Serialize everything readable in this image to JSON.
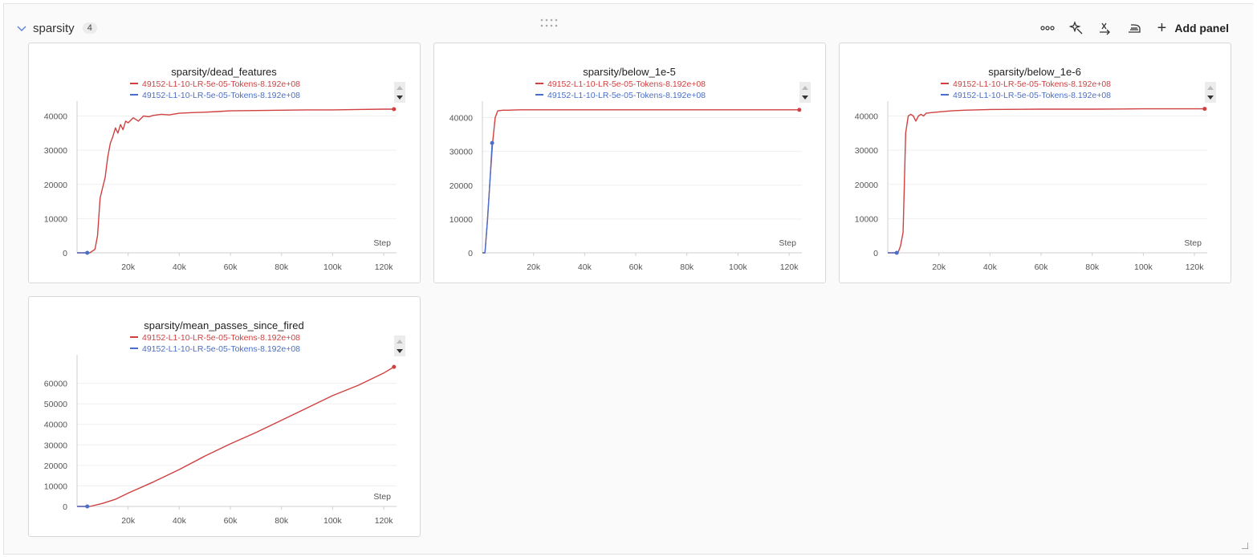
{
  "section": {
    "title": "sparsity",
    "count": "4",
    "toolbar": {
      "more_icon": "more-horizontal-icon",
      "pin_icon": "magic-wand-icon",
      "expression_icon": "expression-x-icon",
      "smoothing_icon": "iron-icon",
      "add_panel_label": "Add panel"
    }
  },
  "colors": {
    "red": "#d04040",
    "blue": "#4a6fc8",
    "grid": "#efefef",
    "axis": "#cfcfcf"
  },
  "panels": [
    {
      "title": "sparsity/dead_features",
      "legend": [
        {
          "label": "49152-L1-10-LR-5e-05-Tokens-8.192e+08",
          "color": "#d04040"
        },
        {
          "label": "49152-L1-10-LR-5e-05-Tokens-8.192e+08",
          "color": "#4a6fc8"
        }
      ],
      "x_label": "Step",
      "x_ticks": [
        "20k",
        "40k",
        "60k",
        "80k",
        "100k",
        "120k"
      ],
      "y_ticks": [
        "0",
        "10000",
        "20000",
        "30000",
        "40000"
      ]
    },
    {
      "title": "sparsity/below_1e-5",
      "legend": [
        {
          "label": "49152-L1-10-LR-5e-05-Tokens-8.192e+08",
          "color": "#d04040"
        },
        {
          "label": "49152-L1-10-LR-5e-05-Tokens-8.192e+08",
          "color": "#4a6fc8"
        }
      ],
      "x_label": "Step",
      "x_ticks": [
        "20k",
        "40k",
        "60k",
        "80k",
        "100k",
        "120k"
      ],
      "y_ticks": [
        "0",
        "10000",
        "20000",
        "30000",
        "40000"
      ]
    },
    {
      "title": "sparsity/below_1e-6",
      "legend": [
        {
          "label": "49152-L1-10-LR-5e-05-Tokens-8.192e+08",
          "color": "#d04040"
        },
        {
          "label": "49152-L1-10-LR-5e-05-Tokens-8.192e+08",
          "color": "#4a6fc8"
        }
      ],
      "x_label": "Step",
      "x_ticks": [
        "20k",
        "40k",
        "60k",
        "80k",
        "100k",
        "120k"
      ],
      "y_ticks": [
        "0",
        "10000",
        "20000",
        "30000",
        "40000"
      ]
    },
    {
      "title": "sparsity/mean_passes_since_fired",
      "legend": [
        {
          "label": "49152-L1-10-LR-5e-05-Tokens-8.192e+08",
          "color": "#d04040"
        },
        {
          "label": "49152-L1-10-LR-5e-05-Tokens-8.192e+08",
          "color": "#4a6fc8"
        }
      ],
      "x_label": "Step",
      "x_ticks": [
        "20k",
        "40k",
        "60k",
        "80k",
        "100k",
        "120k"
      ],
      "y_ticks": [
        "0",
        "10000",
        "20000",
        "30000",
        "40000",
        "50000",
        "60000"
      ]
    }
  ],
  "chart_data": [
    {
      "type": "line",
      "title": "sparsity/dead_features",
      "xlabel": "Step",
      "xlim": [
        0,
        125000
      ],
      "ylim": [
        0,
        42000
      ],
      "series": [
        {
          "name": "49152-L1-10-LR-5e-05-Tokens-8.192e+08",
          "color": "#d04040",
          "x": [
            0,
            5000,
            7000,
            8000,
            9000,
            10000,
            11000,
            12000,
            13000,
            14000,
            15000,
            16000,
            17000,
            18000,
            19000,
            20000,
            22000,
            24000,
            26000,
            28000,
            30000,
            33000,
            36000,
            40000,
            45000,
            50000,
            55000,
            60000,
            70000,
            80000,
            90000,
            100000,
            110000,
            120000,
            124000
          ],
          "y": [
            0,
            0,
            1000,
            5000,
            16000,
            19000,
            22000,
            28000,
            32000,
            34000,
            36500,
            35000,
            37500,
            36000,
            38500,
            38000,
            39500,
            38500,
            40000,
            39800,
            40200,
            40500,
            40300,
            40800,
            41000,
            41100,
            41300,
            41500,
            41600,
            41700,
            41800,
            41800,
            41900,
            42000,
            42000
          ]
        },
        {
          "name": "49152-L1-10-LR-5e-05-Tokens-8.192e+08",
          "color": "#4a6fc8",
          "x": [
            0,
            4000
          ],
          "y": [
            0,
            0
          ]
        }
      ]
    },
    {
      "type": "line",
      "title": "sparsity/below_1e-5",
      "xlabel": "Step",
      "xlim": [
        0,
        125000
      ],
      "ylim": [
        0,
        42500
      ],
      "series": [
        {
          "name": "49152-L1-10-LR-5e-05-Tokens-8.192e+08",
          "color": "#d04040",
          "x": [
            0,
            1000,
            2000,
            3000,
            4000,
            5000,
            6000,
            8000,
            10000,
            15000,
            20000,
            40000,
            60000,
            80000,
            100000,
            124000
          ],
          "y": [
            0,
            0,
            10000,
            22000,
            32500,
            40000,
            42000,
            42200,
            42200,
            42300,
            42300,
            42300,
            42300,
            42300,
            42300,
            42300
          ]
        },
        {
          "name": "49152-L1-10-LR-5e-05-Tokens-8.192e+08",
          "color": "#4a6fc8",
          "x": [
            0,
            1000,
            2000,
            3000,
            3800
          ],
          "y": [
            0,
            0,
            10000,
            22000,
            32500
          ]
        }
      ]
    },
    {
      "type": "line",
      "title": "sparsity/below_1e-6",
      "xlabel": "Step",
      "xlim": [
        0,
        125000
      ],
      "ylim": [
        0,
        42000
      ],
      "series": [
        {
          "name": "49152-L1-10-LR-5e-05-Tokens-8.192e+08",
          "color": "#d04040",
          "x": [
            0,
            4000,
            5000,
            6000,
            7000,
            8000,
            9000,
            10000,
            11000,
            12000,
            13000,
            14000,
            15000,
            17000,
            20000,
            25000,
            30000,
            40000,
            60000,
            80000,
            100000,
            124000
          ],
          "y": [
            0,
            0,
            2000,
            6000,
            35000,
            40000,
            40500,
            40000,
            38500,
            40000,
            40500,
            40000,
            40800,
            41000,
            41200,
            41500,
            41700,
            41900,
            42000,
            42000,
            42100,
            42100
          ]
        },
        {
          "name": "49152-L1-10-LR-5e-05-Tokens-8.192e+08",
          "color": "#4a6fc8",
          "x": [
            0,
            3500
          ],
          "y": [
            0,
            0
          ]
        }
      ]
    },
    {
      "type": "line",
      "title": "sparsity/mean_passes_since_fired",
      "xlabel": "Step",
      "xlim": [
        0,
        125000
      ],
      "ylim": [
        0,
        70000
      ],
      "series": [
        {
          "name": "49152-L1-10-LR-5e-05-Tokens-8.192e+08",
          "color": "#d04040",
          "x": [
            0,
            5000,
            10000,
            15000,
            20000,
            30000,
            40000,
            50000,
            60000,
            70000,
            80000,
            90000,
            100000,
            110000,
            120000,
            124000
          ],
          "y": [
            0,
            0,
            1500,
            3500,
            6500,
            12000,
            18000,
            24500,
            30500,
            36000,
            42000,
            48000,
            54000,
            59000,
            65000,
            68000
          ]
        },
        {
          "name": "49152-L1-10-LR-5e-05-Tokens-8.192e+08",
          "color": "#4a6fc8",
          "x": [
            0,
            4000
          ],
          "y": [
            0,
            0
          ]
        }
      ]
    }
  ]
}
